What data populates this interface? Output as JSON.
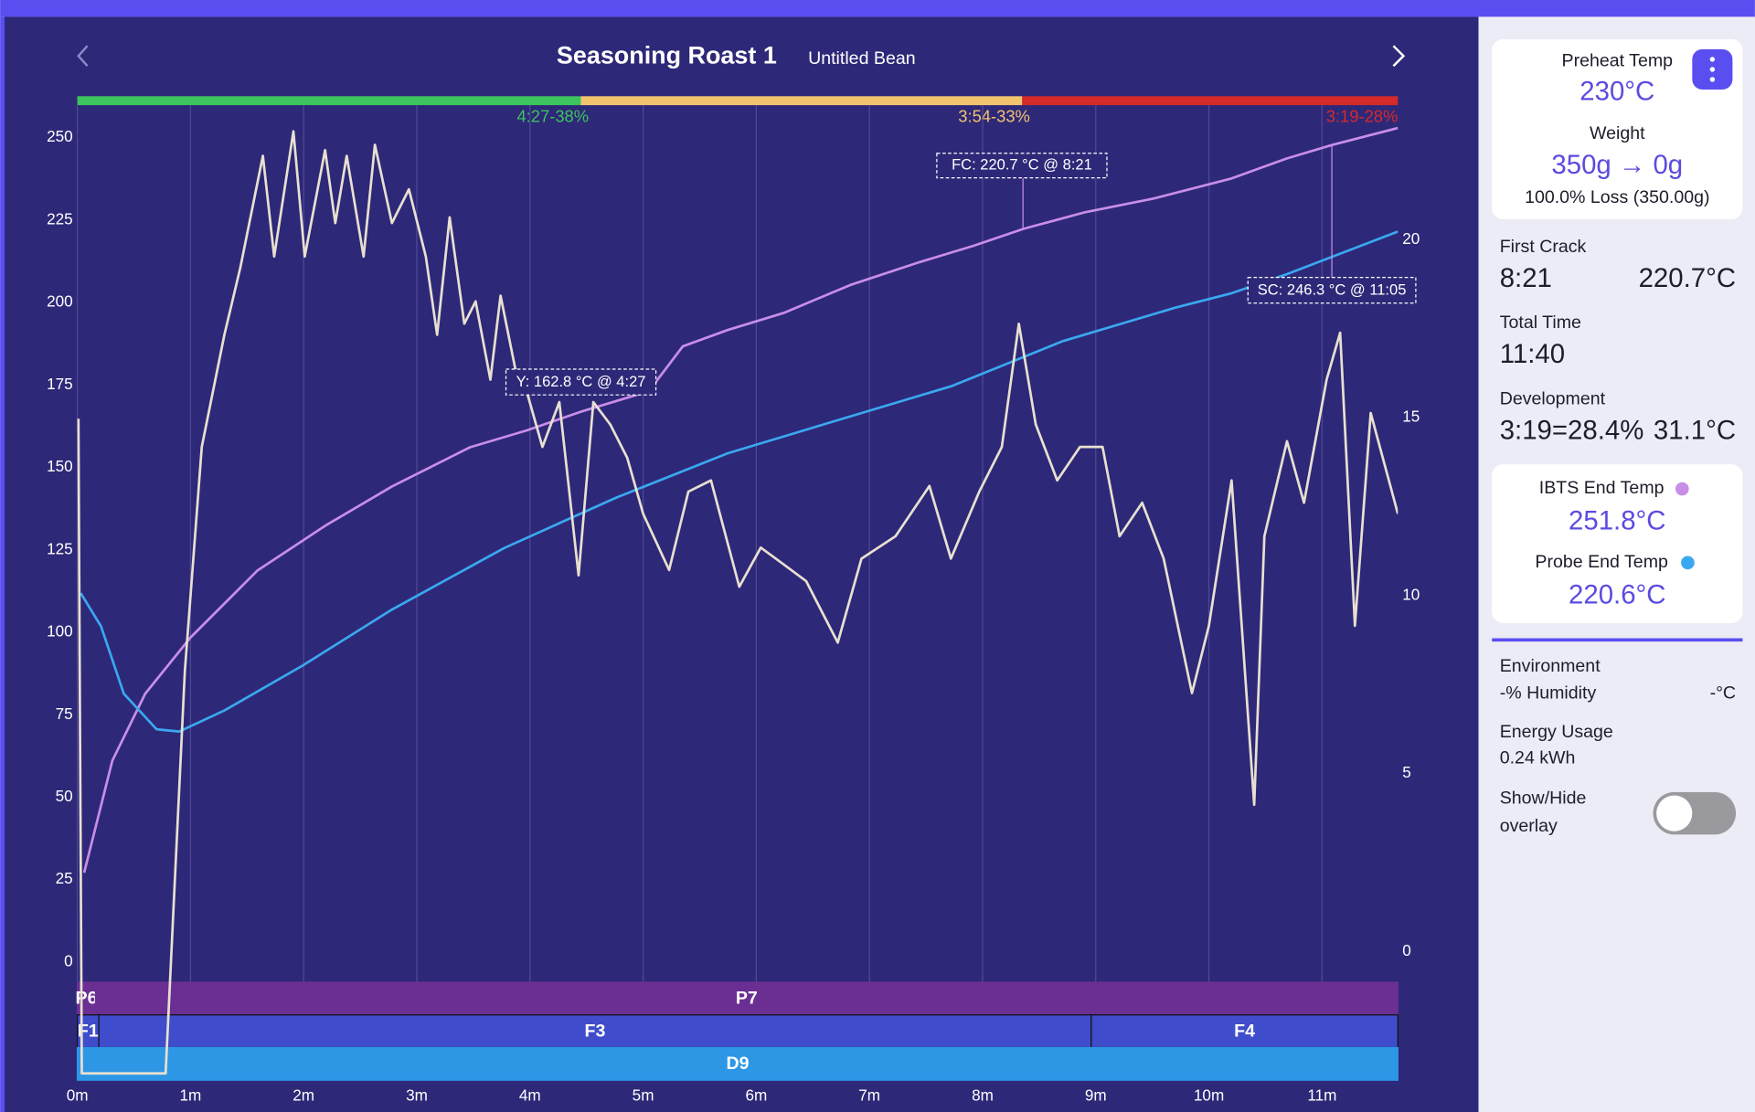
{
  "header": {
    "title": "Seasoning Roast 1",
    "subtitle": "Untitled Bean"
  },
  "chart_data": {
    "type": "line",
    "grid": true,
    "xlim": [
      0,
      11.67
    ],
    "xticks": [
      {
        "value": 0,
        "label": "0m"
      },
      {
        "value": 1,
        "label": "1m"
      },
      {
        "value": 2,
        "label": "2m"
      },
      {
        "value": 3,
        "label": "3m"
      },
      {
        "value": 4,
        "label": "4m"
      },
      {
        "value": 5,
        "label": "5m"
      },
      {
        "value": 6,
        "label": "6m"
      },
      {
        "value": 7,
        "label": "7m"
      },
      {
        "value": 8,
        "label": "8m"
      },
      {
        "value": 9,
        "label": "9m"
      },
      {
        "value": 10,
        "label": "10m"
      },
      {
        "value": 11,
        "label": "11m"
      }
    ],
    "ylim": [
      0,
      260
    ],
    "yticks": [
      0,
      25,
      50,
      75,
      100,
      125,
      150,
      175,
      200,
      225,
      250
    ],
    "y2lim": [
      -0.3,
      23.8
    ],
    "y2ticks": [
      0,
      5,
      10,
      15,
      20
    ],
    "series": [
      {
        "color": "#c88ee8",
        "x": [
          0.06,
          0.31,
          0.6,
          1.0,
          1.59,
          2.19,
          2.78,
          3.47,
          3.97,
          4.46,
          5.05,
          5.35,
          5.75,
          6.24,
          6.83,
          7.43,
          7.92,
          8.36,
          8.91,
          9.51,
          10.2,
          10.69,
          11.09,
          11.67
        ],
        "values": [
          27.1,
          61.1,
          81.4,
          98.4,
          118.7,
          132.3,
          144.2,
          156.1,
          161.2,
          167.0,
          173.1,
          186.7,
          191.7,
          196.8,
          205.3,
          212.1,
          217.2,
          222.3,
          227.4,
          231.5,
          237.6,
          243.7,
          247.8,
          252.9
        ]
      },
      {
        "color": "#3aa8f0",
        "x": [
          0.03,
          0.21,
          0.41,
          0.7,
          0.9,
          1.3,
          1.99,
          2.78,
          3.77,
          4.76,
          5.75,
          6.74,
          7.73,
          8.71,
          9.7,
          10.2,
          10.69,
          11.67
        ],
        "values": [
          111.9,
          101.8,
          81.4,
          70.6,
          69.9,
          76.3,
          89.9,
          106.9,
          125.5,
          140.8,
          154.3,
          164.5,
          174.7,
          188.3,
          198.4,
          202.8,
          208.6,
          221.5
        ]
      },
      {
        "color": "#e8e0d0",
        "axis": "y2",
        "x": [
          0.01,
          0.04,
          0.78,
          0.95,
          1.1,
          1.3,
          1.44,
          1.64,
          1.74,
          1.91,
          2.01,
          2.19,
          2.28,
          2.38,
          2.53,
          2.63,
          2.78,
          2.93,
          3.08,
          3.18,
          3.29,
          3.42,
          3.52,
          3.65,
          3.74,
          3.87,
          3.97,
          4.11,
          4.26,
          4.43,
          4.56,
          4.71,
          4.86,
          5.0,
          5.23,
          5.4,
          5.6,
          5.85,
          6.04,
          6.24,
          6.44,
          6.72,
          6.93,
          7.23,
          7.53,
          7.72,
          7.97,
          8.17,
          8.32,
          8.47,
          8.66,
          8.86,
          9.06,
          9.21,
          9.41,
          9.6,
          9.85,
          10.0,
          10.2,
          10.4,
          10.49,
          10.69,
          10.84,
          11.04,
          11.16,
          11.29,
          11.43,
          11.67
        ],
        "values": [
          14.97,
          -3.43,
          -3.43,
          7.89,
          14.18,
          17.33,
          19.21,
          22.36,
          19.53,
          23.05,
          19.53,
          22.52,
          20.47,
          22.36,
          19.53,
          22.67,
          20.47,
          21.42,
          19.53,
          17.33,
          20.63,
          17.64,
          18.27,
          16.07,
          18.43,
          16.38,
          15.75,
          14.18,
          15.44,
          10.57,
          15.44,
          14.81,
          13.87,
          12.3,
          10.72,
          12.92,
          13.24,
          10.25,
          11.35,
          10.88,
          10.41,
          8.68,
          11.04,
          11.67,
          13.08,
          11.04,
          12.92,
          14.18,
          17.64,
          14.81,
          13.24,
          14.18,
          14.18,
          11.67,
          12.61,
          11.04,
          7.26,
          9.15,
          13.24,
          4.12,
          11.67,
          14.34,
          12.61,
          16.07,
          17.39,
          9.15,
          15.13,
          12.3
        ]
      }
    ],
    "phases": [
      {
        "label": "4:27-38%",
        "color": "#3cc45e",
        "end": 4.45
      },
      {
        "label": "3:54-33%",
        "color": "#f2c46d",
        "end": 8.35
      },
      {
        "label": "3:19-28%",
        "color": "#d42a2a",
        "end": 11.67
      }
    ],
    "bands": [
      {
        "color": "#6b2f93",
        "segments": [
          {
            "label": "P6",
            "start": 0,
            "end": 0.16
          },
          {
            "label": "P7",
            "start": 0.16,
            "end": 11.67
          }
        ]
      },
      {
        "color": "#3f4dcc",
        "segments": [
          {
            "label": "F1",
            "start": 0,
            "end": 0.19
          },
          {
            "label": "F3",
            "start": 0.19,
            "end": 8.96
          },
          {
            "label": "F4",
            "start": 8.96,
            "end": 11.67
          }
        ]
      },
      {
        "color": "#2d97e6",
        "segments": [
          {
            "label": "D9",
            "start": 0,
            "end": 11.67
          }
        ]
      }
    ],
    "annotations": [
      "Y: 162.8 °C @ 4:27",
      "FC: 220.7 °C @ 8:21",
      "SC: 246.3 °C @ 11:05"
    ]
  },
  "sidebar": {
    "preheat_label": "Preheat Temp",
    "preheat": "230°C",
    "weight_label": "Weight",
    "weight": "350g → 0g",
    "loss": "100.0% Loss (350.00g)",
    "first_crack_label": "First Crack",
    "first_crack_time": "8:21",
    "first_crack_temp": "220.7°C",
    "total_time_label": "Total Time",
    "total_time": "11:40",
    "development_label": "Development",
    "development": "3:19=28.4%",
    "development_temp": "31.1°C",
    "ibts_label": "IBTS End Temp",
    "ibts": "251.8°C",
    "probe_label": "Probe End Temp",
    "probe": "220.6°C",
    "environment_label": "Environment",
    "humidity": "-% Humidity",
    "env_temp": "-°C",
    "energy_label": "Energy Usage",
    "energy": "0.24 kWh",
    "overlay_label_1": "Show/Hide",
    "overlay_label_2": "overlay"
  }
}
